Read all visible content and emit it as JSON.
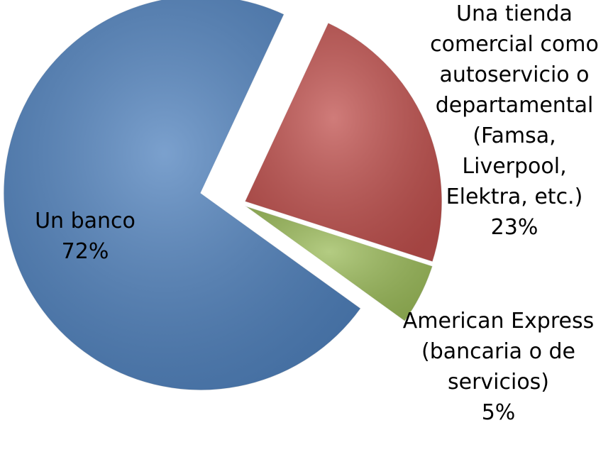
{
  "chart_data": {
    "type": "pie",
    "categories": [
      "Una tienda comercial como autoservicio o departamental (Famsa, Liverpool, Elektra, etc.)",
      "American Express (bancaria o de servicios)",
      "Un banco"
    ],
    "values": [
      23,
      5,
      72
    ],
    "value_labels": [
      "23%",
      "5%",
      "72%"
    ],
    "colors": [
      "#c0504d",
      "#9bbb59",
      "#4f81bd"
    ]
  }
}
